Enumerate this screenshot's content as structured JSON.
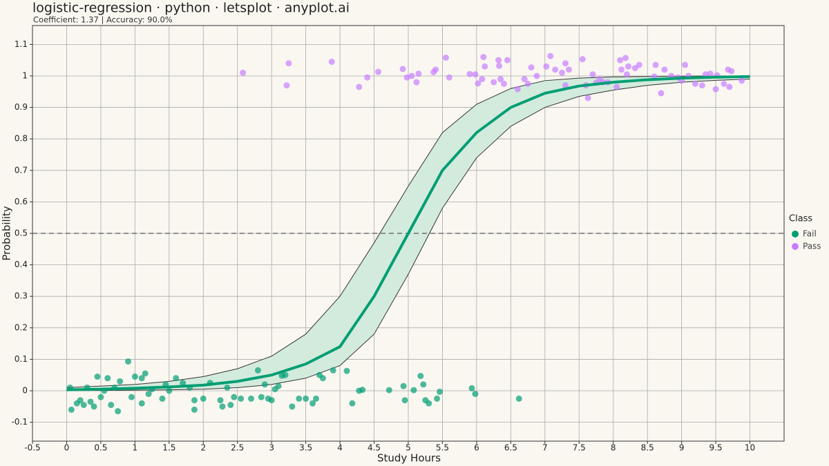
{
  "chart_data": {
    "type": "scatter",
    "title": "logistic-regression · python · letsplot · anyplot.ai",
    "subtitle": "Coefficient: 1.37 | Accuracy: 90.0%",
    "xlabel": "Study Hours",
    "ylabel": "Probability",
    "legend_title": "Class",
    "legend": "right",
    "xlim": [
      -0.5,
      10.5
    ],
    "ylim": [
      -0.16,
      1.16
    ],
    "xticks": [
      -0.5,
      0,
      0.5,
      1,
      1.5,
      2,
      2.5,
      3,
      3.5,
      4,
      4.5,
      5,
      5.5,
      6,
      6.5,
      7,
      7.5,
      8,
      8.5,
      9,
      9.5,
      10
    ],
    "yticks": [
      -0.1,
      0,
      0.1,
      0.2,
      0.3,
      0.4,
      0.5,
      0.6,
      0.7,
      0.8,
      0.9,
      1,
      1.1
    ],
    "grid": true,
    "hline": 0.5,
    "curve": {
      "color": "#009e73",
      "band_color": "#d3ebdd",
      "x": [
        0,
        0.5,
        1,
        1.5,
        2,
        2.5,
        3,
        3.5,
        4,
        4.5,
        5,
        5.5,
        6,
        6.5,
        7,
        7.5,
        8,
        8.5,
        9,
        9.5,
        10
      ],
      "values": [
        0.003,
        0.005,
        0.008,
        0.012,
        0.018,
        0.03,
        0.05,
        0.085,
        0.14,
        0.3,
        0.5,
        0.7,
        0.82,
        0.9,
        0.945,
        0.968,
        0.98,
        0.988,
        0.993,
        0.996,
        0.998
      ],
      "lower": [
        0.001,
        0.001,
        0.002,
        0.003,
        0.005,
        0.01,
        0.02,
        0.04,
        0.08,
        0.18,
        0.37,
        0.58,
        0.74,
        0.84,
        0.9,
        0.935,
        0.955,
        0.97,
        0.98,
        0.986,
        0.99
      ],
      "upper": [
        0.01,
        0.015,
        0.02,
        0.03,
        0.045,
        0.07,
        0.11,
        0.18,
        0.3,
        0.47,
        0.65,
        0.82,
        0.91,
        0.96,
        0.985,
        0.993,
        0.997,
        0.998,
        0.999,
        1,
        1
      ]
    },
    "series": [
      {
        "name": "Fail",
        "color": "#009e73",
        "x": [
          0.05,
          0.07,
          0.15,
          0.2,
          0.25,
          0.3,
          0.35,
          0.4,
          0.45,
          0.5,
          0.55,
          0.6,
          0.65,
          0.7,
          0.75,
          0.78,
          0.9,
          0.95,
          1.0,
          1.1,
          1.1,
          1.15,
          1.2,
          1.25,
          1.4,
          1.45,
          1.5,
          1.6,
          1.7,
          1.8,
          1.87,
          1.87,
          2.0,
          2.1,
          2.25,
          2.28,
          2.35,
          2.4,
          2.45,
          2.55,
          2.7,
          2.8,
          2.85,
          2.9,
          2.95,
          3.0,
          3.05,
          3.1,
          3.15,
          3.2,
          3.3,
          3.4,
          3.5,
          3.6,
          3.65,
          3.7,
          3.75,
          3.9,
          4.1,
          4.18,
          4.28,
          4.33,
          4.72,
          4.93,
          4.95,
          5.08,
          5.18,
          5.22,
          5.25,
          5.3,
          5.42,
          5.46,
          5.93,
          5.98,
          6.62
        ],
        "values": [
          0.01,
          -0.06,
          -0.04,
          -0.03,
          -0.045,
          0.01,
          -0.035,
          -0.05,
          0.045,
          -0.02,
          0.0,
          0.04,
          -0.045,
          0.01,
          -0.065,
          0.03,
          0.093,
          -0.02,
          0.045,
          -0.04,
          0.04,
          0.055,
          -0.01,
          0.005,
          -0.025,
          0.02,
          0.0,
          0.04,
          0.025,
          0.01,
          -0.06,
          -0.03,
          -0.025,
          0.025,
          -0.03,
          -0.05,
          0.01,
          -0.045,
          -0.02,
          -0.025,
          -0.025,
          0.065,
          -0.02,
          0.02,
          -0.025,
          -0.03,
          0.005,
          0.015,
          0.048,
          0.05,
          -0.05,
          -0.025,
          -0.025,
          -0.04,
          -0.025,
          0.05,
          0.04,
          0.065,
          0.063,
          -0.04,
          0.0,
          0.003,
          0.002,
          0.015,
          -0.03,
          0.002,
          0.047,
          0.02,
          -0.03,
          -0.04,
          -0.025,
          -0.003,
          0.008,
          -0.01,
          -0.025
        ]
      },
      {
        "name": "Pass",
        "color": "#c77dff",
        "x": [
          2.58,
          3.22,
          3.25,
          3.88,
          4.28,
          4.4,
          4.56,
          4.92,
          4.98,
          5.05,
          5.12,
          5.15,
          5.37,
          5.4,
          5.55,
          5.6,
          5.9,
          5.98,
          6.02,
          6.08,
          6.1,
          6.12,
          6.25,
          6.32,
          6.33,
          6.35,
          6.4,
          6.45,
          6.6,
          6.7,
          6.75,
          6.8,
          6.88,
          7.02,
          7.08,
          7.15,
          7.25,
          7.3,
          7.3,
          7.35,
          7.55,
          7.6,
          7.63,
          7.7,
          7.75,
          7.8,
          7.85,
          7.92,
          8.05,
          8.1,
          8.12,
          8.18,
          8.2,
          8.22,
          8.32,
          8.38,
          8.6,
          8.62,
          8.7,
          8.75,
          8.85,
          8.95,
          9.0,
          9.05,
          9.1,
          9.2,
          9.3,
          9.35,
          9.42,
          9.5,
          9.52,
          9.62,
          9.68,
          9.7,
          9.73,
          9.88
        ],
        "values": [
          1.01,
          0.97,
          1.04,
          1.045,
          0.965,
          0.995,
          1.013,
          1.022,
          0.995,
          1.0,
          0.98,
          1.007,
          1.012,
          1.02,
          1.058,
          0.995,
          1.006,
          1.005,
          0.976,
          0.99,
          1.06,
          1.03,
          0.98,
          1.05,
          1.032,
          0.99,
          0.975,
          1.05,
          0.958,
          0.99,
          0.975,
          1.027,
          1.0,
          1.03,
          1.063,
          1.02,
          1.01,
          1.04,
          0.97,
          1.02,
          1.053,
          0.97,
          0.93,
          1.005,
          0.978,
          0.99,
          0.98,
          0.98,
          0.965,
          1.05,
          1.02,
          1.057,
          1.005,
          1.03,
          1.025,
          1.035,
          0.998,
          1.035,
          0.945,
          1.02,
          1.0,
          0.995,
          0.985,
          1.035,
          1.0,
          0.975,
          0.97,
          1.005,
          1.007,
          0.958,
          1.002,
          0.975,
          1.02,
          0.965,
          1.015,
          0.985
        ]
      }
    ]
  }
}
